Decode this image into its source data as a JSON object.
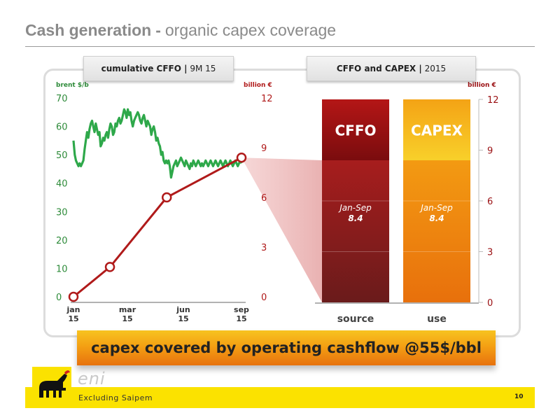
{
  "header": {
    "title_main": "Cash generation",
    "title_dash": "-",
    "title_sub": "organic capex coverage"
  },
  "tabs": {
    "left": {
      "bold": "cumulative CFFO |",
      "rest": "9M 15"
    },
    "right": {
      "bold": "CFFO and CAPEX |",
      "rest": "2015"
    }
  },
  "chart_data": [
    {
      "type": "line",
      "title": "cumulative CFFO | 9M 15",
      "left_axis_label": "brent $/b",
      "right_axis_label": "billion €",
      "left_ylim": [
        0,
        70
      ],
      "right_ylim": [
        0,
        12
      ],
      "left_ticks": [
        0,
        10,
        20,
        30,
        40,
        50,
        60,
        70
      ],
      "right_ticks": [
        0,
        3,
        6,
        9,
        12
      ],
      "x_ticks": [
        {
          "line1": "jan",
          "line2": "15"
        },
        {
          "line1": "mar",
          "line2": "15"
        },
        {
          "line1": "jun",
          "line2": "15"
        },
        {
          "line1": "sep",
          "line2": "15"
        }
      ],
      "colors": {
        "brent": "#2ea84a",
        "cffo": "#b01a1a",
        "left_axis": "#2e8b3a",
        "right_axis": "#b01a1a"
      },
      "series": [
        {
          "axis": "left",
          "x": [
            1,
            3,
            5,
            7,
            9,
            11,
            13,
            15,
            17,
            19,
            21,
            23,
            25,
            27,
            29,
            31,
            33,
            35,
            37,
            39,
            41,
            43,
            45,
            47,
            49,
            51,
            53,
            55,
            57,
            59,
            61,
            63,
            65,
            67,
            69,
            71,
            73,
            75,
            77,
            79,
            81,
            83,
            85,
            87,
            89,
            91,
            93,
            95,
            97,
            99,
            101,
            103,
            105,
            107,
            109,
            111,
            113,
            115,
            117,
            119,
            121,
            123,
            125,
            127,
            129,
            131,
            133,
            135,
            137,
            139,
            141,
            143,
            145,
            147,
            149,
            151,
            153,
            155,
            157,
            159,
            161,
            163,
            165,
            167,
            169,
            171,
            173,
            175,
            177,
            179,
            181,
            183,
            185,
            187,
            189,
            191,
            193,
            195,
            197,
            199,
            201,
            203,
            205,
            207,
            209,
            211,
            213,
            215,
            217,
            219,
            221,
            223,
            225,
            227,
            229,
            231,
            233,
            235,
            237,
            239,
            241,
            243,
            245,
            247,
            249,
            251,
            253,
            255,
            257,
            259,
            261,
            263,
            265,
            267,
            269,
            271,
            273
          ],
          "values": [
            55,
            50,
            48,
            47,
            46,
            47,
            46,
            47,
            48,
            52,
            55,
            58,
            56,
            59,
            61,
            62,
            60,
            58,
            61,
            59,
            57,
            58,
            53,
            54,
            56,
            55,
            57,
            58,
            56,
            59,
            61,
            60,
            57,
            58,
            61,
            60,
            62,
            63,
            61,
            62,
            64,
            66,
            65,
            63,
            66,
            64,
            65,
            62,
            60,
            62,
            63,
            64,
            65,
            64,
            62,
            61,
            63,
            64,
            62,
            60,
            62,
            61,
            60,
            57,
            59,
            60,
            58,
            55,
            56,
            54,
            53,
            50,
            51,
            48,
            47,
            48,
            47,
            48,
            46,
            42,
            44,
            46,
            47,
            48,
            46,
            47,
            48,
            49,
            48,
            47,
            46,
            48,
            47,
            46,
            45,
            47,
            46,
            48,
            47,
            46,
            47,
            48,
            47,
            46,
            47,
            46,
            47,
            48,
            47,
            46,
            47,
            48,
            47,
            46,
            47,
            48,
            47,
            46,
            47,
            48,
            47,
            46,
            47,
            48,
            47,
            46,
            47,
            48,
            47,
            46,
            47,
            48,
            47,
            46,
            47,
            48,
            47
          ]
        },
        {
          "axis": "right",
          "x": [
            1,
            60,
            152,
            273
          ],
          "values": [
            0,
            1.8,
            6.0,
            8.4
          ]
        }
      ]
    },
    {
      "type": "bar",
      "title": "CFFO and CAPEX | 2015",
      "right_axis_label": "billion €",
      "ylim": [
        0,
        12
      ],
      "ticks": [
        0,
        3,
        6,
        9,
        12
      ],
      "categories": [
        "source",
        "use"
      ],
      "bar_labels": [
        "CFFO",
        "CAPEX"
      ],
      "full_value": 12,
      "actual_values": [
        8.4,
        8.4
      ],
      "actual_label": "Jan-Sep",
      "actual_value_text": [
        "8.4",
        "8.4"
      ],
      "colors": {
        "cffo_top": "#9a0f12",
        "cffo_low": "#a51c1c",
        "capex_top": "#f7c31c",
        "capex_low": "#f08c0c"
      }
    }
  ],
  "banner": {
    "text": "capex covered by operating cashflow @55$/bbl"
  },
  "footer": {
    "brand": "eni",
    "footnote": "Excluding Saipem",
    "page_number": "10"
  }
}
